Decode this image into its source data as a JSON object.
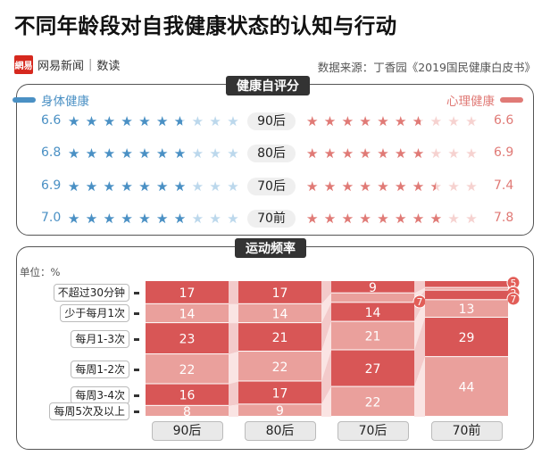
{
  "title": "不同年龄段对自我健康状态的认知与行动",
  "brand": {
    "logo_text": "網易",
    "name": "网易新闻",
    "separator": "|",
    "channel": "数读"
  },
  "source": "数据来源：丁香园《2019国民健康白皮书》",
  "health_panel": {
    "label": "健康自评分",
    "legend_left": "身体健康",
    "legend_right": "心理健康",
    "color_left": "#4a90c4",
    "color_right": "#e07a76"
  },
  "activity_panel": {
    "label": "运动频率",
    "unit": "单位：%"
  },
  "chart_data": [
    {
      "type": "star-rating",
      "title": "健康自评分",
      "max": 10,
      "groups": [
        "90后",
        "80后",
        "70后",
        "70前"
      ],
      "series": [
        {
          "name": "身体健康",
          "values": [
            6.6,
            6.8,
            6.9,
            7.0
          ]
        },
        {
          "name": "心理健康",
          "values": [
            6.6,
            6.9,
            7.4,
            7.8
          ]
        }
      ]
    },
    {
      "type": "bar",
      "stacked": true,
      "title": "运动频率",
      "unit": "单位：%",
      "groups": [
        "90后",
        "80后",
        "70后",
        "70前"
      ],
      "categories": [
        "不超过30分钟",
        "少于每月1次",
        "每月1-3次",
        "每周1-2次",
        "每周3-4次",
        "每周5次及以上"
      ],
      "values": [
        [
          17,
          14,
          23,
          22,
          16,
          8
        ],
        [
          17,
          14,
          21,
          22,
          17,
          9
        ],
        [
          9,
          7,
          14,
          21,
          27,
          22
        ],
        [
          5,
          2,
          7,
          13,
          29,
          44
        ]
      ]
    }
  ]
}
